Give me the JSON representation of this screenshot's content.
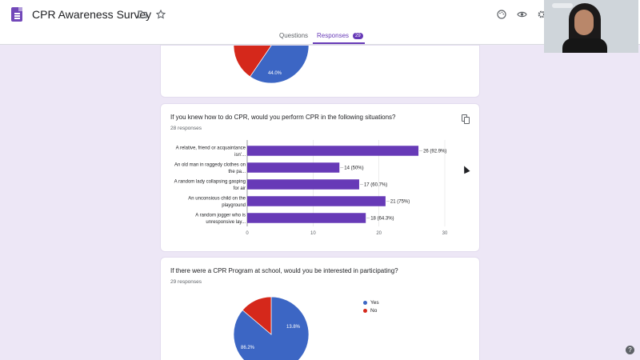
{
  "app": {
    "title": "CPR Awareness Survey",
    "accent": "#673ab7"
  },
  "icons": {
    "folder": "folder-icon",
    "star": "star-icon",
    "palette": "palette-icon",
    "preview": "eye-icon",
    "settings": "gear-icon",
    "help": "help-icon"
  },
  "tabs": [
    {
      "label": "Questions"
    },
    {
      "label": "Responses",
      "badge": "29"
    }
  ],
  "cards": {
    "prev": {
      "slices": [
        {
          "label": "44.0%",
          "percent": 44.0,
          "color": "#3c66c4"
        },
        {
          "label": "",
          "percent": 30.0,
          "color": "#d5281b"
        }
      ]
    },
    "q1": {
      "question": "If you knew how to do CPR, would you perform CPR in the following situations?",
      "responses": "28 responses"
    },
    "q2": {
      "question": "If there were a CPR Program at school, would you be interested in participating?",
      "responses": "29 responses"
    }
  },
  "chart_data": [
    {
      "type": "bar",
      "orientation": "horizontal",
      "categories": [
        [
          "A relative, friend or acquaintance",
          "isn'..."
        ],
        [
          "An old man in raggedy clothes on",
          "the pa..."
        ],
        [
          "A random lady collapsing gasping",
          "for air"
        ],
        [
          "An unconsious child on the",
          "playground"
        ],
        [
          "A random jogger who is",
          "unresponsive lay..."
        ]
      ],
      "values": [
        26,
        14,
        17,
        21,
        18
      ],
      "labels": [
        "26 (92.9%)",
        "14 (50%)",
        "17 (60.7%)",
        "21 (75%)",
        "18 (64.3%)"
      ],
      "xlim": [
        0,
        30
      ],
      "ticks": [
        "0",
        "10",
        "20",
        "30"
      ],
      "color": "#673ab7",
      "grid": true
    },
    {
      "type": "pie",
      "categories": [
        "Yes",
        "No"
      ],
      "values": [
        86.2,
        13.8
      ],
      "labels": [
        "86.2%",
        "13.8%"
      ],
      "colors": [
        "#3c66c4",
        "#d5281b"
      ],
      "legend": "right"
    }
  ]
}
